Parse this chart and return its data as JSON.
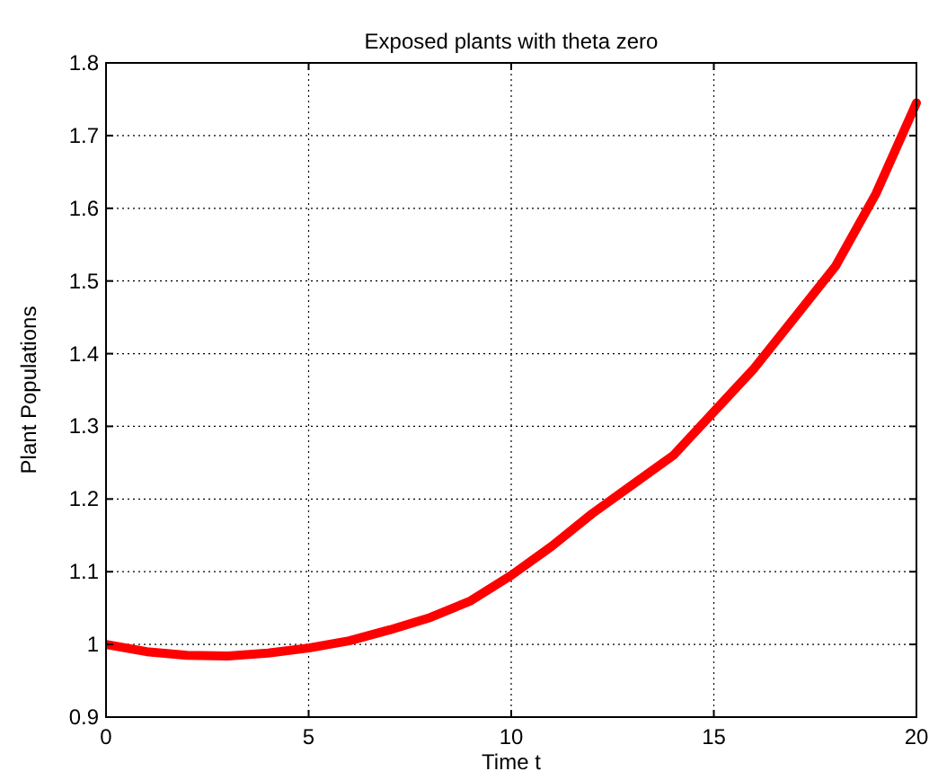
{
  "chart_data": {
    "type": "line",
    "title": "Exposed plants with theta zero",
    "xlabel": "Time t",
    "ylabel": "Plant Populations",
    "x": [
      0,
      1,
      2,
      3,
      4,
      5,
      6,
      7,
      8,
      9,
      10,
      11,
      12,
      13,
      14,
      15,
      16,
      17,
      18,
      19,
      20
    ],
    "series": [
      {
        "color": "#ff0000",
        "values": [
          1.0,
          0.99,
          0.985,
          0.984,
          0.988,
          0.995,
          1.005,
          1.02,
          1.037,
          1.06,
          1.095,
          1.135,
          1.18,
          1.22,
          1.26,
          1.32,
          1.38,
          1.45,
          1.52,
          1.62,
          1.745
        ]
      }
    ],
    "xlim": [
      0,
      20
    ],
    "xticks": [
      0,
      5,
      10,
      15,
      20
    ],
    "ylim": [
      0.9,
      1.8
    ],
    "yticks": [
      0.9,
      1,
      1.1,
      1.2,
      1.3,
      1.4,
      1.5,
      1.6,
      1.7,
      1.8
    ],
    "grid": true,
    "line_style": "solid",
    "marker": "none"
  }
}
